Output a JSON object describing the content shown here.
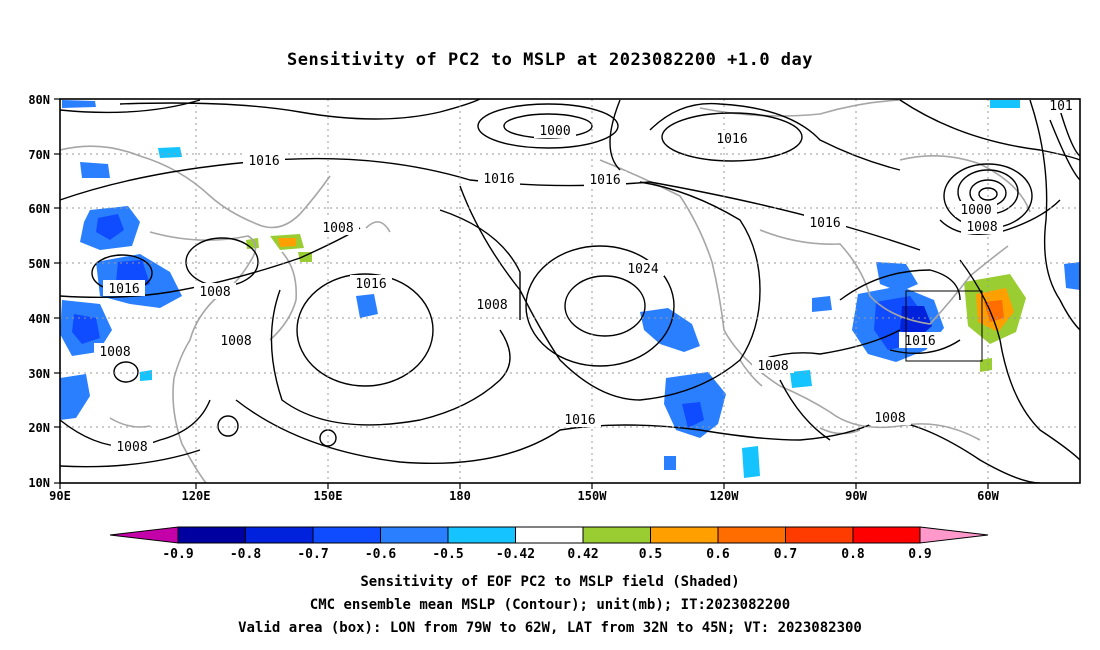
{
  "title": "Sensitivity of PC2 to MSLP at 2023082200 +1.0 day",
  "lat_ticks": [
    "80N",
    "70N",
    "60N",
    "50N",
    "40N",
    "30N",
    "20N",
    "10N"
  ],
  "lon_ticks": [
    "90E",
    "120E",
    "150E",
    "180",
    "150W",
    "120W",
    "90W",
    "60W"
  ],
  "contour_labels": [
    {
      "text": "1000"
    },
    {
      "text": "1016"
    },
    {
      "text": "1016"
    },
    {
      "text": "1016"
    },
    {
      "text": "1016"
    },
    {
      "text": "1008"
    },
    {
      "text": "1000"
    },
    {
      "text": "1008"
    },
    {
      "text": "1016"
    },
    {
      "text": "1008"
    },
    {
      "text": "1016"
    },
    {
      "text": "1008"
    },
    {
      "text": "1024"
    },
    {
      "text": "1008"
    },
    {
      "text": "1008"
    },
    {
      "text": "1016"
    },
    {
      "text": "1008"
    },
    {
      "text": "1008"
    },
    {
      "text": "1016"
    },
    {
      "text": "1008"
    },
    {
      "text": "101"
    }
  ],
  "colorbar": {
    "ticks": [
      "-0.9",
      "-0.8",
      "-0.7",
      "-0.6",
      "-0.5",
      "-0.42",
      "0.42",
      "0.5",
      "0.6",
      "0.7",
      "0.8",
      "0.9"
    ],
    "colors": [
      "#c400a8",
      "#0000a0",
      "#0022dd",
      "#0f4bff",
      "#2a7fff",
      "#15c3ff",
      "#ffffff",
      "#9acd32",
      "#ffa000",
      "#ff6c00",
      "#ff3c00",
      "#ff0000",
      "#ff99cc"
    ]
  },
  "captions": [
    "Sensitivity of EOF PC2 to MSLP field (Shaded)",
    "CMC ensemble mean MSLP (Contour); unit(mb); IT:2023082200",
    "Valid area (box): LON from 79W to 62W, LAT from 32N to 45N; VT: 2023082300"
  ]
}
